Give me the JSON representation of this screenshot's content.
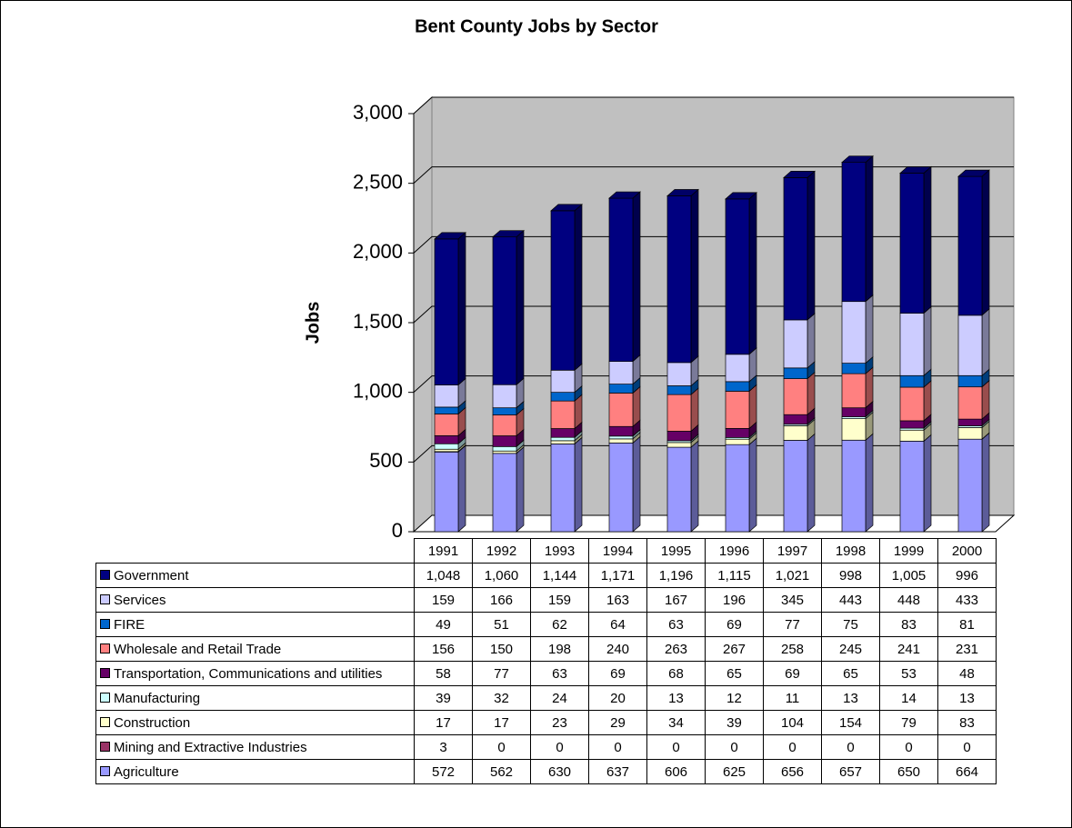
{
  "chart_data": {
    "type": "bar",
    "stacked": true,
    "title": "Bent County Jobs by Sector",
    "y_label": "Jobs",
    "categories": [
      "1991",
      "1992",
      "1993",
      "1994",
      "1995",
      "1996",
      "1997",
      "1998",
      "1999",
      "2000"
    ],
    "ylim": [
      0,
      3000
    ],
    "yticks": [
      0,
      500,
      {
        "value": 1000,
        "label": "1,000"
      },
      {
        "value": 1500,
        "label": "1,500"
      },
      {
        "value": 2000,
        "label": "2,000"
      },
      {
        "value": 2500,
        "label": "2,500"
      },
      {
        "value": 3000,
        "label": "3,000"
      }
    ],
    "grid": true,
    "series": [
      {
        "name": "Agriculture",
        "color": "#9999ff",
        "values": [
          572,
          562,
          630,
          637,
          606,
          625,
          656,
          657,
          650,
          664
        ]
      },
      {
        "name": "Mining and Extractive Industries",
        "color": "#993366",
        "values": [
          3,
          0,
          0,
          0,
          0,
          0,
          0,
          0,
          0,
          0
        ]
      },
      {
        "name": "Construction",
        "color": "#ffffcc",
        "values": [
          17,
          17,
          23,
          29,
          34,
          39,
          104,
          154,
          79,
          83
        ]
      },
      {
        "name": "Manufacturing",
        "color": "#ccffff",
        "values": [
          39,
          32,
          24,
          20,
          13,
          12,
          11,
          13,
          14,
          13
        ]
      },
      {
        "name": "Transportation, Communications and utilities",
        "color": "#660066",
        "values": [
          58,
          77,
          63,
          69,
          68,
          65,
          69,
          65,
          53,
          48
        ]
      },
      {
        "name": "Wholesale and Retail Trade",
        "color": "#ff8080",
        "values": [
          156,
          150,
          198,
          240,
          263,
          267,
          258,
          245,
          241,
          231
        ]
      },
      {
        "name": "FIRE",
        "color": "#0066cc",
        "values": [
          49,
          51,
          62,
          64,
          63,
          69,
          77,
          75,
          83,
          81
        ]
      },
      {
        "name": "Services",
        "color": "#ccccff",
        "values": [
          159,
          166,
          159,
          163,
          167,
          196,
          345,
          443,
          448,
          433
        ]
      },
      {
        "name": "Government",
        "color": "#000080",
        "values": [
          1048,
          1060,
          1144,
          1171,
          1196,
          1115,
          1021,
          998,
          1005,
          996
        ],
        "value_labels": [
          "1,048",
          "1,060",
          "1,144",
          "1,171",
          "1,196",
          "1,115",
          "1,021",
          "998",
          "1,005",
          "996"
        ]
      }
    ]
  }
}
